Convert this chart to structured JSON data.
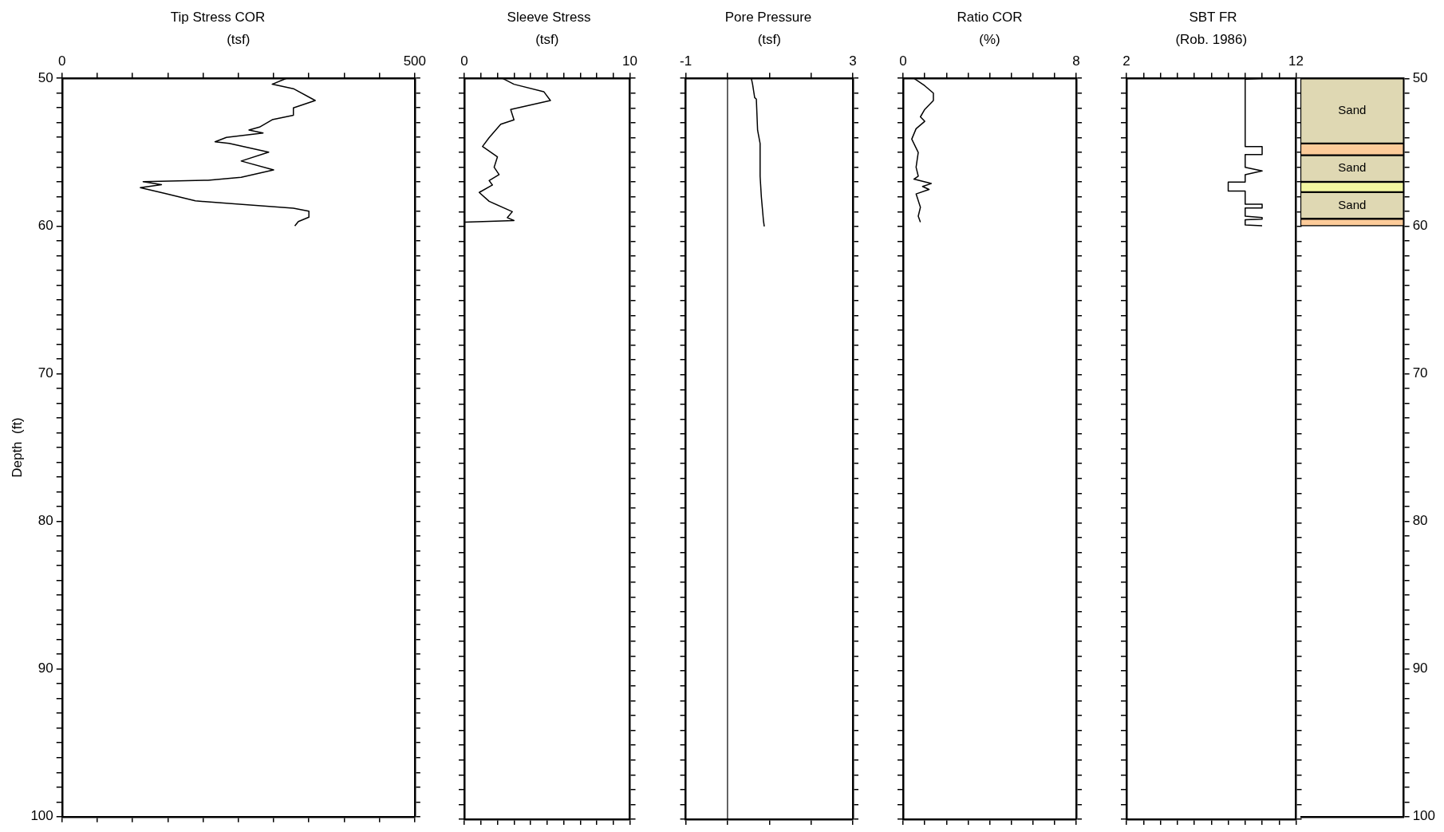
{
  "chart_data": [
    {
      "type": "line",
      "title": "Tip Stress COR",
      "xlabel": "(tsf)",
      "ylabel": "Depth  (ft)",
      "xlim": [
        0,
        500
      ],
      "xticks": [
        0,
        {
          "value": 50,
          "label": null
        },
        {
          "value": 100,
          "label": null
        },
        {
          "value": 150,
          "label": null
        },
        {
          "value": 200,
          "label": null
        },
        {
          "value": 250,
          "label": null
        },
        {
          "value": 300,
          "label": null
        },
        {
          "value": 350,
          "label": null
        },
        {
          "value": 400,
          "label": null
        },
        {
          "value": 450,
          "label": null
        },
        500
      ],
      "ylim": [
        100,
        50
      ],
      "yticks": [
        50,
        {
          "value": 51,
          "label": null
        },
        {
          "value": 52,
          "label": null
        },
        {
          "value": 53,
          "label": null
        },
        {
          "value": 54,
          "label": null
        },
        {
          "value": 55,
          "label": null
        },
        {
          "value": 56,
          "label": null
        },
        {
          "value": 57,
          "label": null
        },
        {
          "value": 58,
          "label": null
        },
        {
          "value": 59,
          "label": null
        },
        60,
        {
          "value": 61,
          "label": null
        },
        {
          "value": 62,
          "label": null
        },
        {
          "value": 63,
          "label": null
        },
        {
          "value": 64,
          "label": null
        },
        {
          "value": 65,
          "label": null
        },
        {
          "value": 66,
          "label": null
        },
        {
          "value": 67,
          "label": null
        },
        {
          "value": 68,
          "label": null
        },
        {
          "value": 69,
          "label": null
        },
        70,
        {
          "value": 71,
          "label": null
        },
        {
          "value": 72,
          "label": null
        },
        {
          "value": 73,
          "label": null
        },
        {
          "value": 74,
          "label": null
        },
        {
          "value": 75,
          "label": null
        },
        {
          "value": 76,
          "label": null
        },
        {
          "value": 77,
          "label": null
        },
        {
          "value": 78,
          "label": null
        },
        {
          "value": 79,
          "label": null
        },
        80,
        {
          "value": 81,
          "label": null
        },
        {
          "value": 82,
          "label": null
        },
        {
          "value": 83,
          "label": null
        },
        {
          "value": 84,
          "label": null
        },
        {
          "value": 85,
          "label": null
        },
        {
          "value": 86,
          "label": null
        },
        {
          "value": 87,
          "label": null
        },
        {
          "value": 88,
          "label": null
        },
        {
          "value": 89,
          "label": null
        },
        90,
        {
          "value": 91,
          "label": null
        },
        {
          "value": 92,
          "label": null
        },
        {
          "value": 93,
          "label": null
        },
        {
          "value": 94,
          "label": null
        },
        {
          "value": 95,
          "label": null
        },
        {
          "value": 96,
          "label": null
        },
        {
          "value": 97,
          "label": null
        },
        {
          "value": 98,
          "label": null
        },
        {
          "value": 99,
          "label": null
        },
        100
      ],
      "series": [
        {
          "color": "#000000",
          "x": [
            318,
            298,
            328,
            359,
            328,
            328,
            298,
            280,
            265,
            285,
            233,
            217,
            237,
            293,
            254,
            300,
            254,
            207,
            115,
            141,
            111,
            146,
            189,
            328,
            350,
            350,
            335,
            330
          ],
          "values": [
            50.0,
            50.4,
            50.7,
            51.5,
            52.0,
            52.5,
            52.8,
            53.3,
            53.5,
            53.7,
            54.0,
            54.3,
            54.4,
            55.0,
            55.6,
            56.2,
            56.7,
            56.9,
            57.0,
            57.2,
            57.4,
            57.8,
            58.3,
            58.8,
            59.0,
            59.4,
            59.7,
            60.0
          ]
        }
      ]
    },
    {
      "type": "line",
      "title": "Sleeve Stress",
      "xlabel": "(tsf)",
      "tick_labels": "x",
      "xlim": [
        0,
        10
      ],
      "xticks": [
        0,
        {
          "value": 1,
          "label": null
        },
        {
          "value": 2,
          "label": null
        },
        {
          "value": 3,
          "label": null
        },
        {
          "value": 4,
          "label": null
        },
        {
          "value": 5,
          "label": null
        },
        {
          "value": 6,
          "label": null
        },
        {
          "value": 7,
          "label": null
        },
        {
          "value": 8,
          "label": null
        },
        {
          "value": 9,
          "label": null
        },
        10
      ],
      "ylim": [
        100,
        50
      ],
      "yticks": [
        50,
        {
          "value": 51,
          "label": null
        },
        {
          "value": 52,
          "label": null
        },
        {
          "value": 53,
          "label": null
        },
        {
          "value": 54,
          "label": null
        },
        {
          "value": 55,
          "label": null
        },
        {
          "value": 56,
          "label": null
        },
        {
          "value": 57,
          "label": null
        },
        {
          "value": 58,
          "label": null
        },
        {
          "value": 59,
          "label": null
        },
        60,
        {
          "value": 61,
          "label": null
        },
        {
          "value": 62,
          "label": null
        },
        {
          "value": 63,
          "label": null
        },
        {
          "value": 64,
          "label": null
        },
        {
          "value": 65,
          "label": null
        },
        {
          "value": 66,
          "label": null
        },
        {
          "value": 67,
          "label": null
        },
        {
          "value": 68,
          "label": null
        },
        {
          "value": 69,
          "label": null
        },
        70,
        {
          "value": 71,
          "label": null
        },
        {
          "value": 72,
          "label": null
        },
        {
          "value": 73,
          "label": null
        },
        {
          "value": 74,
          "label": null
        },
        {
          "value": 75,
          "label": null
        },
        {
          "value": 76,
          "label": null
        },
        {
          "value": 77,
          "label": null
        },
        {
          "value": 78,
          "label": null
        },
        {
          "value": 79,
          "label": null
        },
        80,
        {
          "value": 81,
          "label": null
        },
        {
          "value": 82,
          "label": null
        },
        {
          "value": 83,
          "label": null
        },
        {
          "value": 84,
          "label": null
        },
        {
          "value": 85,
          "label": null
        },
        {
          "value": 86,
          "label": null
        },
        {
          "value": 87,
          "label": null
        },
        {
          "value": 88,
          "label": null
        },
        {
          "value": 89,
          "label": null
        },
        90,
        {
          "value": 91,
          "label": null
        },
        {
          "value": 92,
          "label": null
        },
        {
          "value": 93,
          "label": null
        },
        {
          "value": 94,
          "label": null
        },
        {
          "value": 95,
          "label": null
        },
        {
          "value": 96,
          "label": null
        },
        {
          "value": 97,
          "label": null
        },
        {
          "value": 98,
          "label": null
        },
        {
          "value": 99,
          "label": null
        },
        100
      ],
      "series": [
        {
          "color": "#000000",
          "x": [
            2.3,
            3.0,
            4.8,
            5.2,
            2.8,
            3.0,
            2.2,
            1.5,
            1.1,
            2.0,
            1.8,
            2.1,
            1.5,
            1.7,
            0.9,
            1.5,
            2.9,
            2.6,
            3.0,
            0
          ],
          "values": [
            50.0,
            50.4,
            50.9,
            51.5,
            52.1,
            52.8,
            53.1,
            54.0,
            54.6,
            55.3,
            56.0,
            56.5,
            56.9,
            57.2,
            57.7,
            58.3,
            59.0,
            59.4,
            59.6,
            59.7
          ]
        }
      ]
    },
    {
      "type": "line",
      "title": "Pore Pressure",
      "xlabel": "(tsf)",
      "tick_labels": "x",
      "xlim": [
        -1,
        3
      ],
      "xticks": [
        -1,
        {
          "value": 0,
          "label": null
        },
        {
          "value": 1,
          "label": null
        },
        {
          "value": 2,
          "label": null
        },
        3
      ],
      "ylim": [
        100,
        50
      ],
      "yticks": [
        50,
        {
          "value": 51,
          "label": null
        },
        {
          "value": 52,
          "label": null
        },
        {
          "value": 53,
          "label": null
        },
        {
          "value": 54,
          "label": null
        },
        {
          "value": 55,
          "label": null
        },
        {
          "value": 56,
          "label": null
        },
        {
          "value": 57,
          "label": null
        },
        {
          "value": 58,
          "label": null
        },
        {
          "value": 59,
          "label": null
        },
        60,
        {
          "value": 61,
          "label": null
        },
        {
          "value": 62,
          "label": null
        },
        {
          "value": 63,
          "label": null
        },
        {
          "value": 64,
          "label": null
        },
        {
          "value": 65,
          "label": null
        },
        {
          "value": 66,
          "label": null
        },
        {
          "value": 67,
          "label": null
        },
        {
          "value": 68,
          "label": null
        },
        {
          "value": 69,
          "label": null
        },
        70,
        {
          "value": 71,
          "label": null
        },
        {
          "value": 72,
          "label": null
        },
        {
          "value": 73,
          "label": null
        },
        {
          "value": 74,
          "label": null
        },
        {
          "value": 75,
          "label": null
        },
        {
          "value": 76,
          "label": null
        },
        {
          "value": 77,
          "label": null
        },
        {
          "value": 78,
          "label": null
        },
        {
          "value": 79,
          "label": null
        },
        80,
        {
          "value": 81,
          "label": null
        },
        {
          "value": 82,
          "label": null
        },
        {
          "value": 83,
          "label": null
        },
        {
          "value": 84,
          "label": null
        },
        {
          "value": 85,
          "label": null
        },
        {
          "value": 86,
          "label": null
        },
        {
          "value": 87,
          "label": null
        },
        {
          "value": 88,
          "label": null
        },
        {
          "value": 89,
          "label": null
        },
        90,
        {
          "value": 91,
          "label": null
        },
        {
          "value": 92,
          "label": null
        },
        {
          "value": 93,
          "label": null
        },
        {
          "value": 94,
          "label": null
        },
        {
          "value": 95,
          "label": null
        },
        {
          "value": 96,
          "label": null
        },
        {
          "value": 97,
          "label": null
        },
        {
          "value": 98,
          "label": null
        },
        {
          "value": 99,
          "label": null
        },
        100
      ],
      "ref_lines": [
        {
          "axis": "x",
          "value": 0,
          "color": "#000000"
        }
      ],
      "series": [
        {
          "color": "#000000",
          "x": [
            0.57,
            0.6,
            0.65,
            0.69,
            0.72,
            0.78,
            0.78,
            0.81,
            0.86,
            0.88
          ],
          "values": [
            50.0,
            50.4,
            51.3,
            51.4,
            53.5,
            54.4,
            56.6,
            58.0,
            59.6,
            60.0
          ]
        }
      ]
    },
    {
      "type": "line",
      "title": "Ratio COR",
      "xlabel": "(%)",
      "tick_labels": "x",
      "xlim": [
        0,
        8
      ],
      "xticks": [
        0,
        {
          "value": 1,
          "label": null
        },
        {
          "value": 2,
          "label": null
        },
        {
          "value": 3,
          "label": null
        },
        {
          "value": 4,
          "label": null
        },
        {
          "value": 5,
          "label": null
        },
        {
          "value": 6,
          "label": null
        },
        {
          "value": 7,
          "label": null
        },
        8
      ],
      "ylim": [
        100,
        50
      ],
      "yticks": [
        50,
        {
          "value": 51,
          "label": null
        },
        {
          "value": 52,
          "label": null
        },
        {
          "value": 53,
          "label": null
        },
        {
          "value": 54,
          "label": null
        },
        {
          "value": 55,
          "label": null
        },
        {
          "value": 56,
          "label": null
        },
        {
          "value": 57,
          "label": null
        },
        {
          "value": 58,
          "label": null
        },
        {
          "value": 59,
          "label": null
        },
        60,
        {
          "value": 61,
          "label": null
        },
        {
          "value": 62,
          "label": null
        },
        {
          "value": 63,
          "label": null
        },
        {
          "value": 64,
          "label": null
        },
        {
          "value": 65,
          "label": null
        },
        {
          "value": 66,
          "label": null
        },
        {
          "value": 67,
          "label": null
        },
        {
          "value": 68,
          "label": null
        },
        {
          "value": 69,
          "label": null
        },
        70,
        {
          "value": 71,
          "label": null
        },
        {
          "value": 72,
          "label": null
        },
        {
          "value": 73,
          "label": null
        },
        {
          "value": 74,
          "label": null
        },
        {
          "value": 75,
          "label": null
        },
        {
          "value": 76,
          "label": null
        },
        {
          "value": 77,
          "label": null
        },
        {
          "value": 78,
          "label": null
        },
        {
          "value": 79,
          "label": null
        },
        80,
        {
          "value": 81,
          "label": null
        },
        {
          "value": 82,
          "label": null
        },
        {
          "value": 83,
          "label": null
        },
        {
          "value": 84,
          "label": null
        },
        {
          "value": 85,
          "label": null
        },
        {
          "value": 86,
          "label": null
        },
        {
          "value": 87,
          "label": null
        },
        {
          "value": 88,
          "label": null
        },
        {
          "value": 89,
          "label": null
        },
        90,
        {
          "value": 91,
          "label": null
        },
        {
          "value": 92,
          "label": null
        },
        {
          "value": 93,
          "label": null
        },
        {
          "value": 94,
          "label": null
        },
        {
          "value": 95,
          "label": null
        },
        {
          "value": 96,
          "label": null
        },
        {
          "value": 97,
          "label": null
        },
        {
          "value": 98,
          "label": null
        },
        {
          "value": 99,
          "label": null
        },
        100
      ],
      "series": [
        {
          "color": "#000000",
          "x": [
            0.5,
            1.0,
            1.4,
            1.4,
            1.0,
            0.8,
            1.0,
            0.6,
            0.4,
            0.7,
            0.6,
            0.7,
            0.5,
            1.3,
            0.9,
            1.2,
            0.6,
            0.8,
            0.7,
            0.8
          ],
          "values": [
            50.0,
            50.5,
            51.0,
            51.5,
            52.1,
            52.6,
            52.9,
            53.4,
            54.1,
            55.0,
            56.0,
            56.6,
            56.8,
            57.1,
            57.3,
            57.5,
            57.8,
            58.7,
            59.3,
            59.7
          ]
        }
      ]
    },
    {
      "type": "line",
      "title": "SBT FR",
      "xlabel": "(Rob. 1986)",
      "tick_labels": "x",
      "xlim": [
        2,
        12
      ],
      "xticks": [
        2,
        {
          "value": 3,
          "label": null
        },
        {
          "value": 4,
          "label": null
        },
        {
          "value": 5,
          "label": null
        },
        {
          "value": 6,
          "label": null
        },
        {
          "value": 7,
          "label": null
        },
        {
          "value": 8,
          "label": null
        },
        {
          "value": 9,
          "label": null
        },
        {
          "value": 10,
          "label": null
        },
        {
          "value": 11,
          "label": null
        },
        12
      ],
      "ylim": [
        100,
        50
      ],
      "yticks": [
        50,
        {
          "value": 51,
          "label": null
        },
        {
          "value": 52,
          "label": null
        },
        {
          "value": 53,
          "label": null
        },
        {
          "value": 54,
          "label": null
        },
        {
          "value": 55,
          "label": null
        },
        {
          "value": 56,
          "label": null
        },
        {
          "value": 57,
          "label": null
        },
        {
          "value": 58,
          "label": null
        },
        {
          "value": 59,
          "label": null
        },
        60,
        {
          "value": 61,
          "label": null
        },
        {
          "value": 62,
          "label": null
        },
        {
          "value": 63,
          "label": null
        },
        {
          "value": 64,
          "label": null
        },
        {
          "value": 65,
          "label": null
        },
        {
          "value": 66,
          "label": null
        },
        {
          "value": 67,
          "label": null
        },
        {
          "value": 68,
          "label": null
        },
        {
          "value": 69,
          "label": null
        },
        70,
        {
          "value": 71,
          "label": null
        },
        {
          "value": 72,
          "label": null
        },
        {
          "value": 73,
          "label": null
        },
        {
          "value": 74,
          "label": null
        },
        {
          "value": 75,
          "label": null
        },
        {
          "value": 76,
          "label": null
        },
        {
          "value": 77,
          "label": null
        },
        {
          "value": 78,
          "label": null
        },
        {
          "value": 79,
          "label": null
        },
        80,
        {
          "value": 81,
          "label": null
        },
        {
          "value": 82,
          "label": null
        },
        {
          "value": 83,
          "label": null
        },
        {
          "value": 84,
          "label": null
        },
        {
          "value": 85,
          "label": null
        },
        {
          "value": 86,
          "label": null
        },
        {
          "value": 87,
          "label": null
        },
        {
          "value": 88,
          "label": null
        },
        {
          "value": 89,
          "label": null
        },
        90,
        {
          "value": 91,
          "label": null
        },
        {
          "value": 92,
          "label": null
        },
        {
          "value": 93,
          "label": null
        },
        {
          "value": 94,
          "label": null
        },
        {
          "value": 95,
          "label": null
        },
        {
          "value": 96,
          "label": null
        },
        {
          "value": 97,
          "label": null
        },
        {
          "value": 98,
          "label": null
        },
        {
          "value": 99,
          "label": null
        },
        100
      ],
      "series": [
        {
          "color": "#000000",
          "x": [
            10,
            9,
            9,
            10,
            10,
            9,
            9,
            10,
            9,
            9,
            8,
            8,
            9,
            9,
            10,
            10,
            9,
            9,
            10,
            10,
            9,
            9,
            10
          ],
          "values": [
            50.0,
            50.05,
            54.6,
            54.6,
            55.15,
            55.15,
            56.0,
            56.25,
            56.5,
            57.0,
            57.0,
            57.6,
            57.6,
            58.5,
            58.5,
            58.75,
            58.75,
            59.3,
            59.4,
            59.5,
            59.55,
            59.9,
            59.95
          ]
        }
      ]
    },
    {
      "type": "bar",
      "tick_labels": "y",
      "categories": [
        null
      ],
      "ylim": [
        100,
        50
      ],
      "yticks": [
        50,
        {
          "value": 51,
          "label": null
        },
        {
          "value": 52,
          "label": null
        },
        {
          "value": 53,
          "label": null
        },
        {
          "value": 54,
          "label": null
        },
        {
          "value": 55,
          "label": null
        },
        {
          "value": 56,
          "label": null
        },
        {
          "value": 57,
          "label": null
        },
        {
          "value": 58,
          "label": null
        },
        {
          "value": 59,
          "label": null
        },
        60,
        {
          "value": 61,
          "label": null
        },
        {
          "value": 62,
          "label": null
        },
        {
          "value": 63,
          "label": null
        },
        {
          "value": 64,
          "label": null
        },
        {
          "value": 65,
          "label": null
        },
        {
          "value": 66,
          "label": null
        },
        {
          "value": 67,
          "label": null
        },
        {
          "value": 68,
          "label": null
        },
        {
          "value": 69,
          "label": null
        },
        70,
        {
          "value": 71,
          "label": null
        },
        {
          "value": 72,
          "label": null
        },
        {
          "value": 73,
          "label": null
        },
        {
          "value": 74,
          "label": null
        },
        {
          "value": 75,
          "label": null
        },
        {
          "value": 76,
          "label": null
        },
        {
          "value": 77,
          "label": null
        },
        {
          "value": 78,
          "label": null
        },
        {
          "value": 79,
          "label": null
        },
        80,
        {
          "value": 81,
          "label": null
        },
        {
          "value": 82,
          "label": null
        },
        {
          "value": 83,
          "label": null
        },
        {
          "value": 84,
          "label": null
        },
        {
          "value": 85,
          "label": null
        },
        {
          "value": 86,
          "label": null
        },
        {
          "value": 87,
          "label": null
        },
        {
          "value": 88,
          "label": null
        },
        {
          "value": 89,
          "label": null
        },
        90,
        {
          "value": 91,
          "label": null
        },
        {
          "value": 92,
          "label": null
        },
        {
          "value": 93,
          "label": null
        },
        {
          "value": 94,
          "label": null
        },
        {
          "value": 95,
          "label": null
        },
        {
          "value": 96,
          "label": null
        },
        {
          "value": 97,
          "label": null
        },
        {
          "value": 98,
          "label": null
        },
        {
          "value": 99,
          "label": null
        },
        100
      ],
      "series": [
        {
          "name": "Sand",
          "color": "#dfd8b3",
          "base": [
            50
          ],
          "values": [
            4.4
          ]
        },
        {
          "color": "#fccb99",
          "base": [
            54.4
          ],
          "values": [
            0.8
          ]
        },
        {
          "name": "Sand",
          "color": "#dfd8b3",
          "base": [
            55.2
          ],
          "values": [
            1.8
          ]
        },
        {
          "color": "#f3f6a0",
          "base": [
            57.0
          ],
          "values": [
            0.7
          ]
        },
        {
          "name": "Sand",
          "color": "#dfd8b3",
          "base": [
            57.7
          ],
          "values": [
            1.8
          ]
        },
        {
          "color": "#fccb99",
          "base": [
            59.5
          ],
          "values": [
            0.5
          ]
        }
      ]
    }
  ]
}
